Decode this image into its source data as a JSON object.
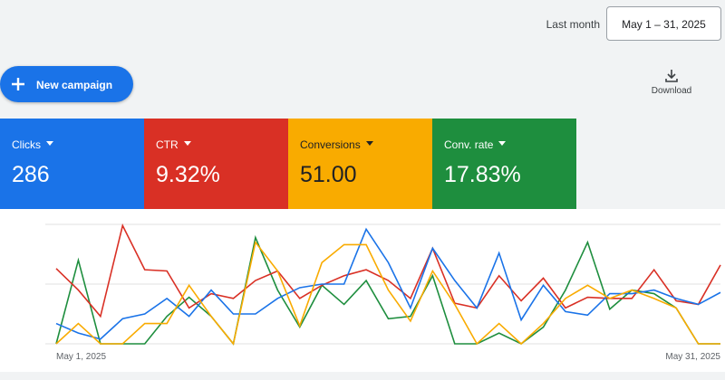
{
  "header": {
    "date_range_label": "Last month",
    "date_range": "May 1 – 31, 2025"
  },
  "toolbar": {
    "new_campaign": "New campaign",
    "download": "Download"
  },
  "chart_data": {
    "type": "line",
    "categories": [
      "May 1, 2025",
      null,
      null,
      null,
      null,
      null,
      null,
      null,
      null,
      null,
      null,
      null,
      null,
      null,
      null,
      null,
      null,
      null,
      null,
      null,
      null,
      null,
      null,
      null,
      null,
      null,
      null,
      null,
      null,
      null,
      "May 31, 2025"
    ],
    "ylim": [
      0,
      100
    ],
    "gridlines": [
      0,
      50,
      100
    ],
    "series": [
      {
        "name": "Clicks",
        "summary": "286",
        "color": "#1a73e8",
        "values": [
          17,
          9,
          4,
          21,
          25,
          38,
          23,
          45,
          25,
          25,
          38,
          47,
          50,
          50,
          96,
          68,
          30,
          80,
          53,
          30,
          76,
          20,
          49,
          27,
          24,
          42,
          42,
          45,
          38,
          33,
          43
        ]
      },
      {
        "name": "CTR",
        "summary": "9.32%",
        "color": "#d93025",
        "values": [
          63,
          45,
          23,
          99,
          62,
          61,
          30,
          42,
          38,
          53,
          61,
          38,
          49,
          57,
          62,
          53,
          38,
          80,
          34,
          30,
          57,
          36,
          55,
          30,
          39,
          38,
          38,
          62,
          36,
          33,
          66
        ]
      },
      {
        "name": "Conversions",
        "summary": "51.00",
        "color": "#f9ab00",
        "values": [
          0,
          17,
          0,
          0,
          17,
          17,
          49,
          23,
          0,
          85,
          61,
          15,
          68,
          83,
          83,
          45,
          19,
          61,
          33,
          0,
          17,
          0,
          17,
          38,
          49,
          38,
          45,
          38,
          30,
          0,
          0
        ]
      },
      {
        "name": "Conv. rate",
        "summary": "17.83%",
        "color": "#1e8e3e",
        "values": [
          0,
          70,
          0,
          0,
          0,
          23,
          39,
          23,
          0,
          89,
          45,
          14,
          49,
          33,
          53,
          21,
          23,
          57,
          0,
          0,
          9,
          0,
          14,
          45,
          85,
          29,
          45,
          42,
          30,
          0,
          0
        ]
      }
    ]
  }
}
